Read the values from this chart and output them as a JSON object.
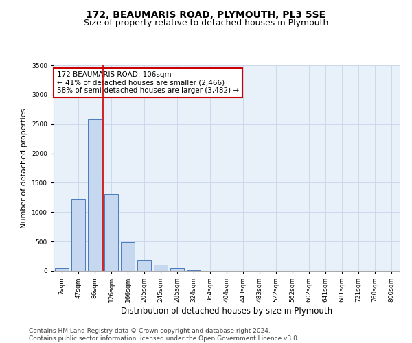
{
  "title_line1": "172, BEAUMARIS ROAD, PLYMOUTH, PL3 5SE",
  "title_line2": "Size of property relative to detached houses in Plymouth",
  "xlabel": "Distribution of detached houses by size in Plymouth",
  "ylabel": "Number of detached properties",
  "categories": [
    "7sqm",
    "47sqm",
    "86sqm",
    "126sqm",
    "166sqm",
    "205sqm",
    "245sqm",
    "285sqm",
    "324sqm",
    "364sqm",
    "404sqm",
    "443sqm",
    "483sqm",
    "522sqm",
    "562sqm",
    "602sqm",
    "641sqm",
    "681sqm",
    "721sqm",
    "760sqm",
    "800sqm"
  ],
  "bar_heights": [
    50,
    1220,
    2580,
    1310,
    490,
    185,
    100,
    45,
    10,
    3,
    2,
    1,
    0,
    0,
    0,
    0,
    0,
    0,
    0,
    0,
    0
  ],
  "bar_color": "#c5d8f0",
  "bar_edge_color": "#4a7bbf",
  "ylim": [
    0,
    3500
  ],
  "yticks": [
    0,
    500,
    1000,
    1500,
    2000,
    2500,
    3000,
    3500
  ],
  "grid_color": "#ccd8ec",
  "background_color": "#e8f0fa",
  "annotation_text": "172 BEAUMARIS ROAD: 106sqm\n← 41% of detached houses are smaller (2,466)\n58% of semi-detached houses are larger (3,482) →",
  "annotation_box_color": "#ffffff",
  "annotation_box_edge": "#cc0000",
  "property_line_color": "#cc0000",
  "footer_text": "Contains HM Land Registry data © Crown copyright and database right 2024.\nContains public sector information licensed under the Open Government Licence v3.0.",
  "title_fontsize": 10,
  "subtitle_fontsize": 9,
  "annotation_fontsize": 7.5,
  "footer_fontsize": 6.5,
  "ylabel_fontsize": 8,
  "xlabel_fontsize": 8.5,
  "tick_fontsize": 6.5
}
